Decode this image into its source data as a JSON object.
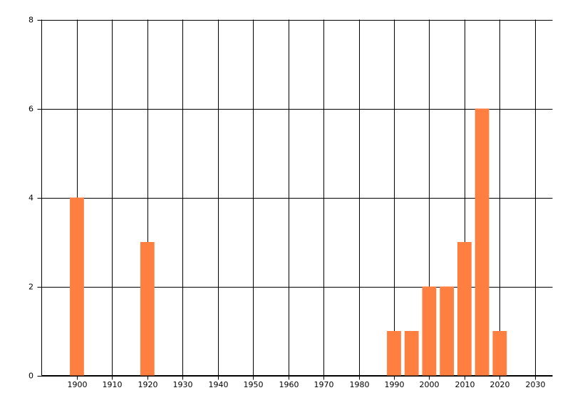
{
  "chart_data": {
    "type": "bar",
    "x": [
      1900,
      1920,
      1990,
      1995,
      2000,
      2005,
      2010,
      2015,
      2020
    ],
    "values": [
      4,
      3,
      1,
      1,
      2,
      2,
      3,
      6,
      1
    ],
    "color": "#ff7f40",
    "xlim": [
      1890,
      2035
    ],
    "xticks": [
      1900,
      1910,
      1920,
      1930,
      1940,
      1950,
      1960,
      1970,
      1980,
      1990,
      2000,
      2010,
      2020,
      2030
    ],
    "ylim": [
      0,
      8
    ],
    "yticks": [
      0,
      2,
      4,
      6,
      8
    ],
    "grid": true
  }
}
